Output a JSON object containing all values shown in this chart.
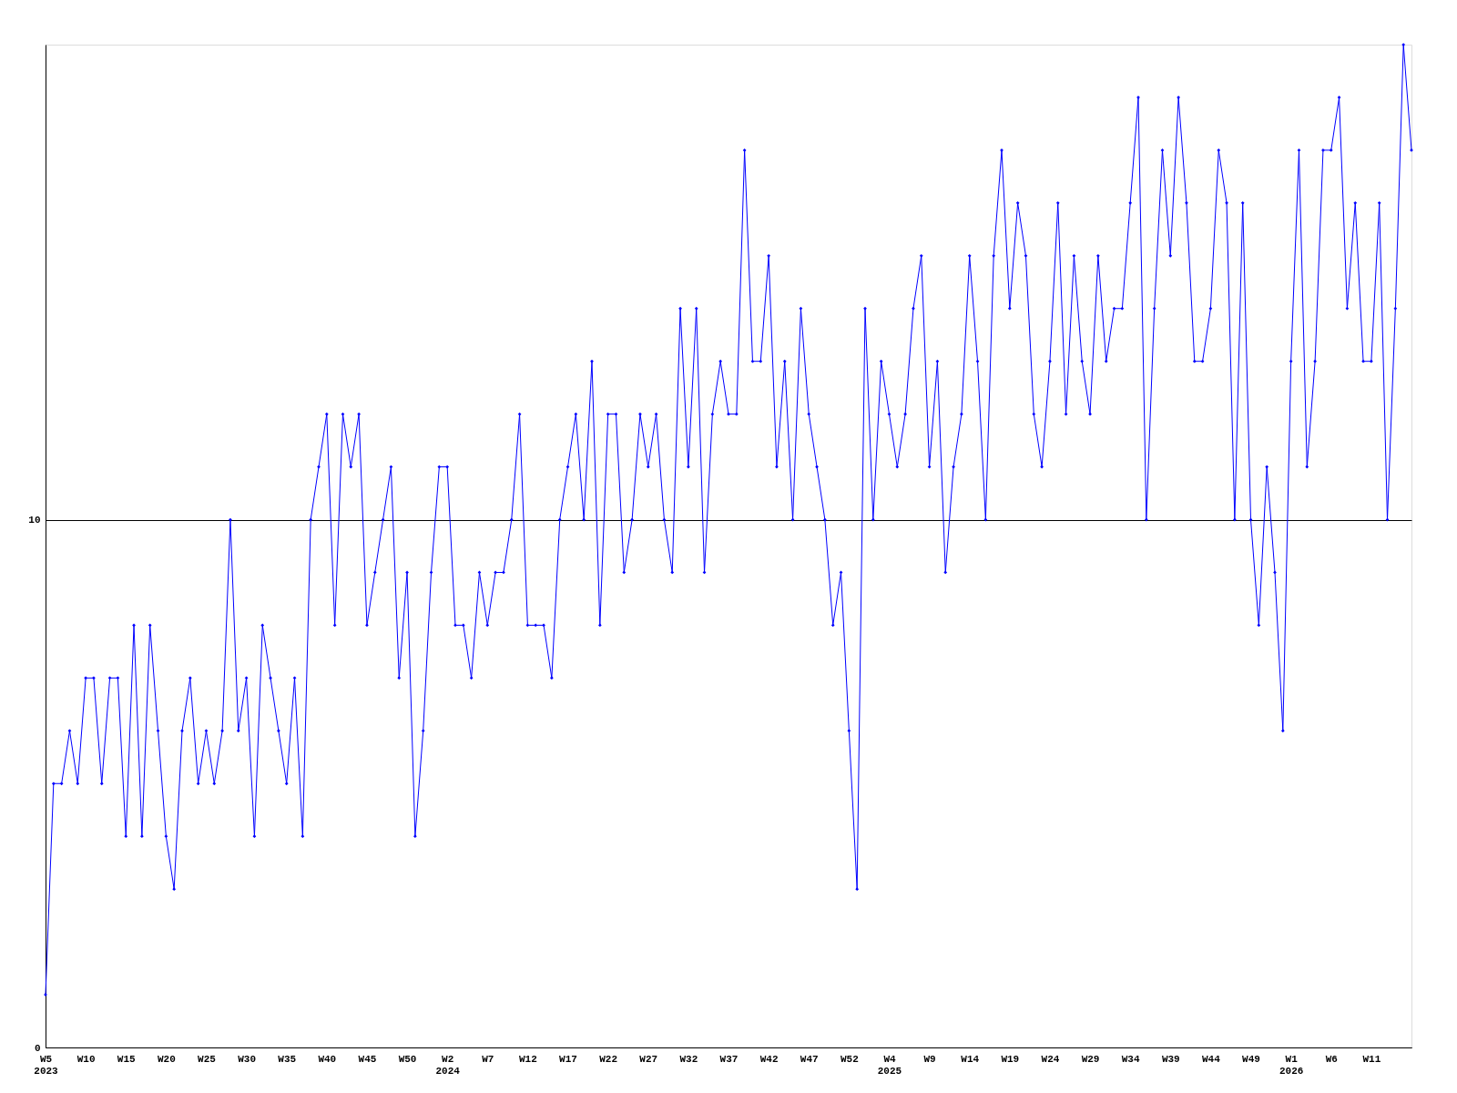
{
  "chart_data": {
    "type": "line",
    "categories": [
      "W5\n2023",
      null,
      null,
      null,
      null,
      "W10",
      null,
      null,
      null,
      null,
      "W15",
      null,
      null,
      null,
      null,
      "W20",
      null,
      null,
      null,
      null,
      "W25",
      null,
      null,
      null,
      null,
      "W30",
      null,
      null,
      null,
      null,
      "W35",
      null,
      null,
      null,
      null,
      "W40",
      null,
      null,
      null,
      null,
      "W45",
      null,
      null,
      null,
      null,
      "W50",
      null,
      null,
      null,
      null,
      "W2\n2024",
      null,
      null,
      null,
      null,
      "W7",
      null,
      null,
      null,
      null,
      "W12",
      null,
      null,
      null,
      null,
      "W17",
      null,
      null,
      null,
      null,
      "W22",
      null,
      null,
      null,
      null,
      "W27",
      null,
      null,
      null,
      null,
      "W32",
      null,
      null,
      null,
      null,
      "W37",
      null,
      null,
      null,
      null,
      "W42",
      null,
      null,
      null,
      null,
      "W47",
      null,
      null,
      null,
      null,
      "W52",
      null,
      null,
      null,
      null,
      "W4\n2025",
      null,
      null,
      null,
      null,
      "W9",
      null,
      null,
      null,
      null,
      "W14",
      null,
      null,
      null,
      null,
      "W19",
      null,
      null,
      null,
      null,
      "W24",
      null,
      null,
      null,
      null,
      "W29",
      null,
      null,
      null,
      null,
      "W34",
      null,
      null,
      null,
      null,
      "W39",
      null,
      null,
      null,
      null,
      "W44",
      null,
      null,
      null,
      null,
      "W49",
      null,
      null,
      null,
      null,
      "W1\n2026",
      null,
      null,
      null,
      null,
      "W6",
      null,
      null,
      null,
      null,
      "W11",
      null,
      null,
      null,
      null,
      null
    ],
    "series": [
      {
        "color": "#0000ff",
        "values": [
          1,
          5,
          5,
          6,
          5,
          7,
          7,
          5,
          7,
          7,
          4,
          8,
          4,
          8,
          6,
          4,
          3,
          6,
          7,
          5,
          6,
          5,
          6,
          10,
          6,
          7,
          4,
          8,
          7,
          6,
          5,
          7,
          4,
          10,
          11,
          12,
          8,
          12,
          11,
          12,
          8,
          9,
          10,
          11,
          7,
          9,
          4,
          6,
          9,
          11,
          11,
          8,
          8,
          7,
          9,
          8,
          9,
          9,
          10,
          12,
          8,
          8,
          8,
          7,
          10,
          11,
          12,
          10,
          13,
          8,
          12,
          12,
          9,
          10,
          12,
          11,
          12,
          10,
          9,
          14,
          11,
          14,
          9,
          12,
          13,
          12,
          12,
          17,
          13,
          13,
          15,
          11,
          13,
          10,
          14,
          12,
          11,
          10,
          8,
          9,
          6,
          3,
          14,
          10,
          13,
          12,
          11,
          12,
          14,
          15,
          11,
          13,
          9,
          11,
          12,
          15,
          13,
          10,
          15,
          17,
          14,
          16,
          15,
          12,
          11,
          13,
          16,
          12,
          15,
          13,
          12,
          15,
          13,
          14,
          14,
          16,
          18,
          10,
          14,
          17,
          15,
          18,
          16,
          13,
          13,
          14,
          17,
          16,
          10,
          16,
          10,
          8,
          11,
          9,
          6,
          13,
          17,
          11,
          13,
          17,
          17,
          18,
          14,
          16,
          13,
          13,
          16,
          10,
          14,
          19,
          17
        ]
      }
    ],
    "ylim": [
      0,
      19
    ],
    "yticks": [
      0,
      10
    ],
    "grid": "y",
    "marker": "diamond",
    "line_style": "solid"
  }
}
